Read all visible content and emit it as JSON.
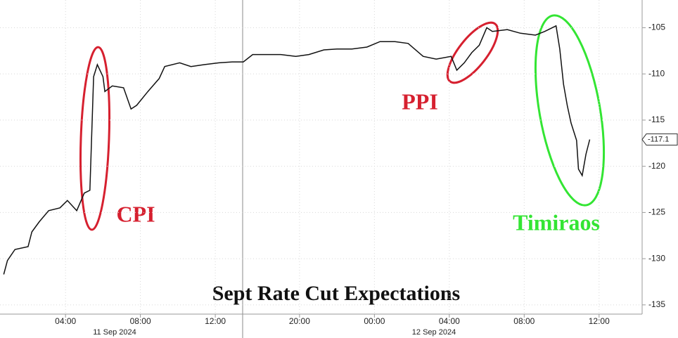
{
  "chart_data": {
    "type": "line",
    "title": "Sept Rate Cut Expectations",
    "annotations": [
      "CPI",
      "PPI",
      "Timiraos"
    ],
    "date_labels": [
      "11 Sep 2024",
      "12 Sep 2024"
    ],
    "color": "#111111",
    "x": [
      0.7,
      0.9,
      1.3,
      2.0,
      2.2,
      2.6,
      3.1,
      3.7,
      4.1,
      4.6,
      5.0,
      5.3,
      5.5,
      5.7,
      6.0,
      6.1,
      6.5,
      7.1,
      7.5,
      7.8,
      8.4,
      9.0,
      9.3,
      10.1,
      10.7,
      11.4,
      12.2,
      12.9,
      13.5,
      14.0,
      14.8,
      15.5,
      16.3,
      17.0,
      17.8,
      18.5,
      19.3,
      20.1,
      20.8,
      21.6,
      22.3,
      23.1,
      23.8,
      24.6,
      24.9,
      25.3,
      25.7,
      26.1,
      26.5,
      26.8,
      27.6,
      28.3,
      29.1,
      29.6,
      30.2,
      30.4,
      30.6,
      30.8,
      31.0,
      31.3,
      31.4,
      31.6,
      31.8,
      32.0
    ],
    "values": [
      -131.7,
      -130.2,
      -129,
      -128.7,
      -127.1,
      -126,
      -124.8,
      -124.5,
      -123.7,
      -124.8,
      -122.9,
      -122.6,
      -110.3,
      -109,
      -110.3,
      -111.9,
      -111.3,
      -111.5,
      -113.8,
      -113.4,
      -111.9,
      -110.5,
      -109.2,
      -108.8,
      -109.2,
      -109,
      -108.8,
      -108.7,
      -108.7,
      -107.9,
      -107.9,
      -107.9,
      -108.1,
      -107.9,
      -107.4,
      -107.3,
      -107.3,
      -107.1,
      -106.5,
      -106.5,
      -106.7,
      -108.1,
      -108.4,
      -108.1,
      -109.6,
      -108.8,
      -107.7,
      -106.9,
      -105,
      -105.4,
      -105.2,
      -105.6,
      -105.8,
      -105.4,
      -104.8,
      -107.3,
      -111.1,
      -113.4,
      -115.3,
      -117.2,
      -120.3,
      -121,
      -118.7,
      -117.1
    ],
    "xlim": [
      0.5,
      34.8
    ],
    "xticks": [
      {
        "value": 4,
        "label": "04:00"
      },
      {
        "value": 8,
        "label": "08:00"
      },
      {
        "value": 12,
        "label": "12:00"
      },
      {
        "value": 16.5,
        "label": "20:00"
      },
      {
        "value": 20.5,
        "label": "00:00"
      },
      {
        "value": 24.5,
        "label": "04:00"
      },
      {
        "value": 28.5,
        "label": "08:00"
      },
      {
        "value": 32.5,
        "label": "12:00"
      }
    ],
    "ylim": [
      -136,
      -102
    ],
    "yticks": [
      -135,
      -130,
      -125,
      -120,
      -115,
      -110,
      -105
    ],
    "grid": true
  }
}
